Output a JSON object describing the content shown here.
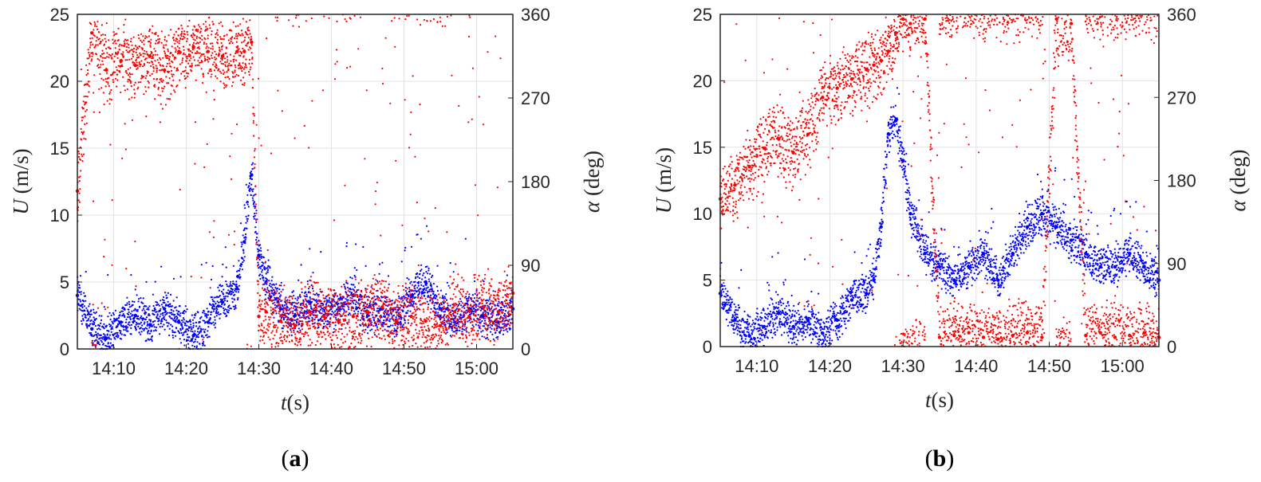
{
  "panels": [
    {
      "id": "a",
      "sublabel": {
        "open": "(",
        "letter": "a",
        "close": ")"
      },
      "ylabel_left": {
        "var": "U",
        "unit": " (m/s)"
      },
      "ylabel_right": {
        "var": "α",
        "unit": " (deg)"
      },
      "xlabel": {
        "var": "t",
        "unit": "(s)"
      },
      "left_ticks": [
        "0",
        "5",
        "10",
        "15",
        "20",
        "25"
      ],
      "right_ticks": [
        "0",
        "90",
        "180",
        "270",
        "360"
      ],
      "x_ticks": [
        "14:10",
        "14:20",
        "14:30",
        "14:40",
        "14:50",
        "15:00"
      ]
    },
    {
      "id": "b",
      "sublabel": {
        "open": "(",
        "letter": "b",
        "close": ")"
      },
      "ylabel_left": {
        "var": "U",
        "unit": " (m/s)"
      },
      "ylabel_right": {
        "var": "α",
        "unit": " (deg)"
      },
      "xlabel": {
        "var": "t",
        "unit": "(s)"
      },
      "left_ticks": [
        "0",
        "5",
        "10",
        "15",
        "20",
        "25"
      ],
      "right_ticks": [
        "0",
        "90",
        "180",
        "270",
        "360"
      ],
      "x_ticks": [
        "14:10",
        "14:20",
        "14:30",
        "14:40",
        "14:50",
        "15:00"
      ]
    }
  ],
  "chart_data": [
    {
      "type": "scatter",
      "panel": "a",
      "xlabel": "t(s)",
      "ylabel": "U (m/s)",
      "ylabel_right": "α (deg)",
      "x_ticks": [
        "14:10",
        "14:20",
        "14:30",
        "14:40",
        "14:50",
        "15:00"
      ],
      "xlim": [
        "14:05",
        "15:05"
      ],
      "ylim": [
        0,
        25
      ],
      "ylim_right": [
        0,
        360
      ],
      "grid": true,
      "colors": {
        "speed": "#0000ff",
        "direction": "#ff0000"
      },
      "series": [
        {
          "axis": "left",
          "color": "#0000ff",
          "x": [
            "14:05",
            "14:07",
            "14:09",
            "14:11",
            "14:13",
            "14:15",
            "14:17",
            "14:19",
            "14:21",
            "14:23",
            "14:25",
            "14:27",
            "14:28",
            "14:29",
            "14:30",
            "14:31",
            "14:33",
            "14:35",
            "14:37",
            "14:39",
            "14:41",
            "14:43",
            "14:45",
            "14:47",
            "14:49",
            "14:51",
            "14:53",
            "14:55",
            "14:57",
            "14:59",
            "15:01",
            "15:03",
            "15:05"
          ],
          "y": [
            4.0,
            1.5,
            0.8,
            2.0,
            2.5,
            1.8,
            3.0,
            2.0,
            1.0,
            2.0,
            3.5,
            4.5,
            8.0,
            13.0,
            7.0,
            5.0,
            3.0,
            2.5,
            3.5,
            2.5,
            3.0,
            4.0,
            2.5,
            3.0,
            2.0,
            4.0,
            5.0,
            3.0,
            2.0,
            3.0,
            2.5,
            2.0,
            3.0
          ]
        },
        {
          "axis": "right",
          "color": "#ff0000",
          "x": [
            "14:05",
            "14:07",
            "14:09",
            "14:11",
            "14:13",
            "14:15",
            "14:17",
            "14:19",
            "14:21",
            "14:23",
            "14:25",
            "14:27",
            "14:28",
            "14:29",
            "14:30",
            "14:31",
            "14:33",
            "14:35",
            "14:37",
            "14:39",
            "14:41",
            "14:43",
            "14:45",
            "14:47",
            "14:49",
            "14:51",
            "14:53",
            "14:55",
            "14:57",
            "14:59",
            "15:01",
            "15:03",
            "15:05"
          ],
          "y": [
            170,
            340,
            300,
            310,
            305,
            315,
            300,
            320,
            325,
            320,
            315,
            320,
            320,
            330,
            35,
            40,
            30,
            25,
            40,
            35,
            30,
            35,
            40,
            45,
            30,
            35,
            30,
            25,
            40,
            35,
            45,
            40,
            60
          ]
        }
      ]
    },
    {
      "type": "scatter",
      "panel": "b",
      "xlabel": "t(s)",
      "ylabel": "U (m/s)",
      "ylabel_right": "α (deg)",
      "x_ticks": [
        "14:10",
        "14:20",
        "14:30",
        "14:40",
        "14:50",
        "15:00"
      ],
      "xlim": [
        "14:05",
        "15:05"
      ],
      "ylim": [
        0,
        25
      ],
      "ylim_right": [
        0,
        360
      ],
      "grid": true,
      "colors": {
        "speed": "#0000ff",
        "direction": "#ff0000"
      },
      "series": [
        {
          "axis": "left",
          "color": "#0000ff",
          "x": [
            "14:05",
            "14:07",
            "14:09",
            "14:11",
            "14:13",
            "14:15",
            "14:17",
            "14:19",
            "14:21",
            "14:23",
            "14:25",
            "14:26",
            "14:27",
            "14:28",
            "14:29",
            "14:30",
            "14:31",
            "14:33",
            "14:35",
            "14:37",
            "14:39",
            "14:41",
            "14:43",
            "14:45",
            "14:47",
            "14:49",
            "14:51",
            "14:53",
            "14:55",
            "14:57",
            "14:59",
            "15:01",
            "15:03",
            "15:05"
          ],
          "y": [
            4.0,
            2.0,
            0.8,
            1.5,
            2.5,
            1.5,
            2.0,
            1.0,
            2.0,
            3.5,
            4.0,
            5.0,
            9.0,
            16.0,
            17.0,
            14.0,
            10.0,
            7.0,
            6.0,
            5.0,
            6.0,
            7.0,
            5.0,
            7.0,
            9.0,
            10.0,
            9.0,
            8.0,
            7.0,
            6.0,
            6.0,
            7.0,
            6.0,
            5.0
          ]
        },
        {
          "axis": "right",
          "color": "#ff0000",
          "x": [
            "14:05",
            "14:07",
            "14:09",
            "14:11",
            "14:13",
            "14:15",
            "14:17",
            "14:19",
            "14:21",
            "14:23",
            "14:25",
            "14:26",
            "14:27",
            "14:28",
            "14:29",
            "14:30",
            "14:31",
            "14:33",
            "14:35",
            "14:37",
            "14:39",
            "14:41",
            "14:43",
            "14:45",
            "14:47",
            "14:49",
            "14:51",
            "14:53",
            "14:55",
            "14:57",
            "14:59",
            "15:01",
            "15:03",
            "15:05"
          ],
          "y": [
            160,
            175,
            195,
            215,
            225,
            210,
            230,
            270,
            280,
            290,
            300,
            305,
            310,
            320,
            340,
            355,
            350,
            355,
            10,
            12,
            15,
            10,
            8,
            12,
            15,
            10,
            355,
            350,
            12,
            15,
            10,
            12,
            15,
            10
          ]
        }
      ]
    }
  ]
}
